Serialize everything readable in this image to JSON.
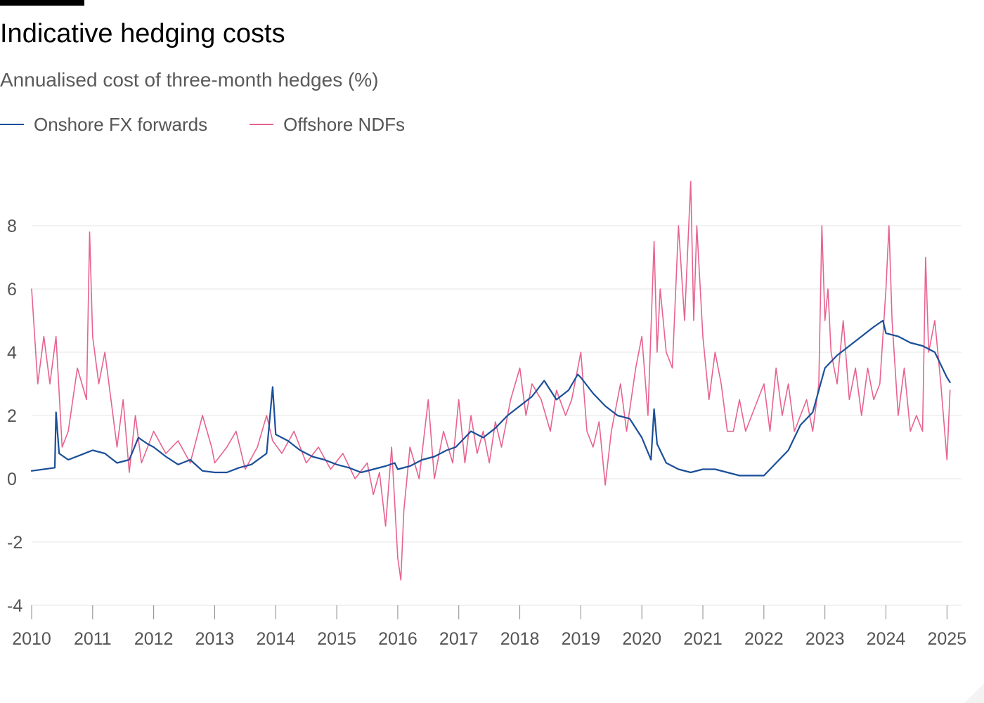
{
  "header": {
    "title": "Indicative hedging costs",
    "subtitle": "Annualised cost of three-month hedges (%)"
  },
  "colors": {
    "onshore": "#1b4f99",
    "offshore": "#e8638f",
    "grid": "#e6e6e6",
    "axis_text": "#555555",
    "baseline": "#888888"
  },
  "chart_data": {
    "type": "line",
    "title": "Indicative hedging costs",
    "subtitle": "Annualised cost of three-month hedges (%)",
    "xlabel": "",
    "ylabel": "",
    "xlim": [
      2010.0,
      2025.1
    ],
    "ylim": [
      -4,
      9.7
    ],
    "x_ticks": [
      2010,
      2011,
      2012,
      2013,
      2014,
      2015,
      2016,
      2017,
      2018,
      2019,
      2020,
      2021,
      2022,
      2023,
      2024,
      2025
    ],
    "y_ticks": [
      -4,
      -2,
      0,
      2,
      4,
      6,
      8
    ],
    "grid": true,
    "legend_position": "top-left",
    "series": [
      {
        "name": "Onshore FX forwards",
        "color": "#1b4f99",
        "x": [
          2010.0,
          2010.2,
          2010.38,
          2010.4,
          2010.45,
          2010.6,
          2010.8,
          2011.0,
          2011.2,
          2011.4,
          2011.6,
          2011.75,
          2011.9,
          2012.0,
          2012.2,
          2012.4,
          2012.6,
          2012.8,
          2013.0,
          2013.2,
          2013.4,
          2013.6,
          2013.85,
          2013.95,
          2014.0,
          2014.2,
          2014.4,
          2014.6,
          2014.8,
          2015.0,
          2015.2,
          2015.4,
          2015.6,
          2015.8,
          2015.95,
          2016.0,
          2016.2,
          2016.4,
          2016.6,
          2016.8,
          2016.95,
          2017.0,
          2017.2,
          2017.4,
          2017.6,
          2017.8,
          2018.0,
          2018.2,
          2018.4,
          2018.6,
          2018.8,
          2018.95,
          2019.0,
          2019.2,
          2019.4,
          2019.6,
          2019.8,
          2020.0,
          2020.15,
          2020.2,
          2020.25,
          2020.4,
          2020.6,
          2020.8,
          2021.0,
          2021.2,
          2021.4,
          2021.6,
          2021.8,
          2022.0,
          2022.2,
          2022.4,
          2022.6,
          2022.8,
          2023.0,
          2023.2,
          2023.4,
          2023.6,
          2023.8,
          2023.95,
          2024.0,
          2024.2,
          2024.4,
          2024.6,
          2024.8,
          2025.0,
          2025.05
        ],
        "y": [
          0.25,
          0.3,
          0.35,
          2.1,
          0.8,
          0.6,
          0.75,
          0.9,
          0.8,
          0.5,
          0.6,
          1.3,
          1.1,
          1.0,
          0.7,
          0.45,
          0.6,
          0.25,
          0.2,
          0.2,
          0.35,
          0.45,
          0.8,
          2.9,
          1.4,
          1.2,
          0.9,
          0.7,
          0.6,
          0.45,
          0.35,
          0.2,
          0.3,
          0.4,
          0.5,
          0.3,
          0.4,
          0.6,
          0.7,
          0.9,
          1.0,
          1.1,
          1.5,
          1.3,
          1.6,
          2.0,
          2.3,
          2.6,
          3.1,
          2.5,
          2.8,
          3.3,
          3.2,
          2.7,
          2.3,
          2.0,
          1.9,
          1.3,
          0.6,
          2.2,
          1.1,
          0.5,
          0.3,
          0.2,
          0.3,
          0.3,
          0.2,
          0.1,
          0.1,
          0.1,
          0.5,
          0.9,
          1.7,
          2.1,
          3.5,
          3.9,
          4.2,
          4.5,
          4.8,
          5.0,
          4.6,
          4.5,
          4.3,
          4.2,
          4.0,
          3.2,
          3.05
        ]
      },
      {
        "name": "Offshore NDFs",
        "color": "#e8638f",
        "x": [
          2010.0,
          2010.1,
          2010.2,
          2010.3,
          2010.4,
          2010.5,
          2010.6,
          2010.75,
          2010.9,
          2010.95,
          2011.0,
          2011.1,
          2011.2,
          2011.3,
          2011.4,
          2011.5,
          2011.6,
          2011.7,
          2011.8,
          2011.9,
          2012.0,
          2012.2,
          2012.4,
          2012.6,
          2012.8,
          2012.95,
          2013.0,
          2013.2,
          2013.35,
          2013.5,
          2013.7,
          2013.85,
          2013.95,
          2014.1,
          2014.3,
          2014.5,
          2014.7,
          2014.9,
          2015.1,
          2015.3,
          2015.5,
          2015.6,
          2015.7,
          2015.8,
          2015.9,
          2016.0,
          2016.05,
          2016.1,
          2016.2,
          2016.35,
          2016.5,
          2016.6,
          2016.75,
          2016.9,
          2017.0,
          2017.1,
          2017.2,
          2017.3,
          2017.4,
          2017.5,
          2017.6,
          2017.7,
          2017.85,
          2018.0,
          2018.1,
          2018.2,
          2018.35,
          2018.5,
          2018.6,
          2018.75,
          2018.85,
          2019.0,
          2019.1,
          2019.2,
          2019.3,
          2019.4,
          2019.5,
          2019.65,
          2019.75,
          2019.9,
          2020.0,
          2020.1,
          2020.2,
          2020.25,
          2020.3,
          2020.4,
          2020.5,
          2020.6,
          2020.7,
          2020.8,
          2020.85,
          2020.9,
          2021.0,
          2021.1,
          2021.2,
          2021.3,
          2021.4,
          2021.5,
          2021.6,
          2021.7,
          2021.8,
          2021.9,
          2022.0,
          2022.1,
          2022.2,
          2022.3,
          2022.4,
          2022.5,
          2022.6,
          2022.7,
          2022.8,
          2022.9,
          2022.95,
          2023.0,
          2023.05,
          2023.1,
          2023.2,
          2023.3,
          2023.4,
          2023.5,
          2023.6,
          2023.7,
          2023.8,
          2023.9,
          2024.0,
          2024.05,
          2024.1,
          2024.2,
          2024.3,
          2024.4,
          2024.5,
          2024.6,
          2024.65,
          2024.7,
          2024.8,
          2024.9,
          2025.0,
          2025.05
        ],
        "y": [
          6.0,
          3.0,
          4.5,
          3.0,
          4.5,
          1.0,
          1.5,
          3.5,
          2.5,
          7.8,
          4.5,
          3.0,
          4.0,
          2.5,
          1.0,
          2.5,
          0.2,
          2.0,
          0.5,
          1.0,
          1.5,
          0.8,
          1.2,
          0.5,
          2.0,
          1.0,
          0.5,
          1.0,
          1.5,
          0.3,
          1.0,
          2.0,
          1.2,
          0.8,
          1.5,
          0.5,
          1.0,
          0.3,
          0.8,
          0.0,
          0.5,
          -0.5,
          0.2,
          -1.5,
          1.0,
          -2.5,
          -3.2,
          -1.0,
          1.0,
          0.0,
          2.5,
          0.0,
          1.5,
          0.5,
          2.5,
          0.5,
          2.0,
          0.8,
          1.5,
          0.5,
          1.8,
          1.0,
          2.5,
          3.5,
          2.0,
          3.0,
          2.5,
          1.5,
          2.8,
          2.0,
          2.5,
          4.0,
          1.5,
          1.0,
          1.8,
          -0.2,
          1.5,
          3.0,
          1.5,
          3.5,
          4.5,
          2.0,
          7.5,
          4.0,
          6.0,
          4.0,
          3.5,
          8.0,
          5.0,
          9.4,
          5.0,
          8.0,
          4.5,
          2.5,
          4.0,
          3.0,
          1.5,
          1.5,
          2.5,
          1.5,
          2.0,
          2.5,
          3.0,
          1.5,
          3.5,
          2.0,
          3.0,
          1.5,
          2.0,
          2.5,
          1.5,
          3.0,
          8.0,
          5.0,
          6.0,
          4.0,
          3.0,
          5.0,
          2.5,
          3.5,
          2.0,
          3.5,
          2.5,
          3.0,
          6.0,
          8.0,
          5.0,
          2.0,
          3.5,
          1.5,
          2.0,
          1.5,
          7.0,
          4.0,
          5.0,
          3.0,
          0.6,
          2.8
        ]
      }
    ]
  }
}
